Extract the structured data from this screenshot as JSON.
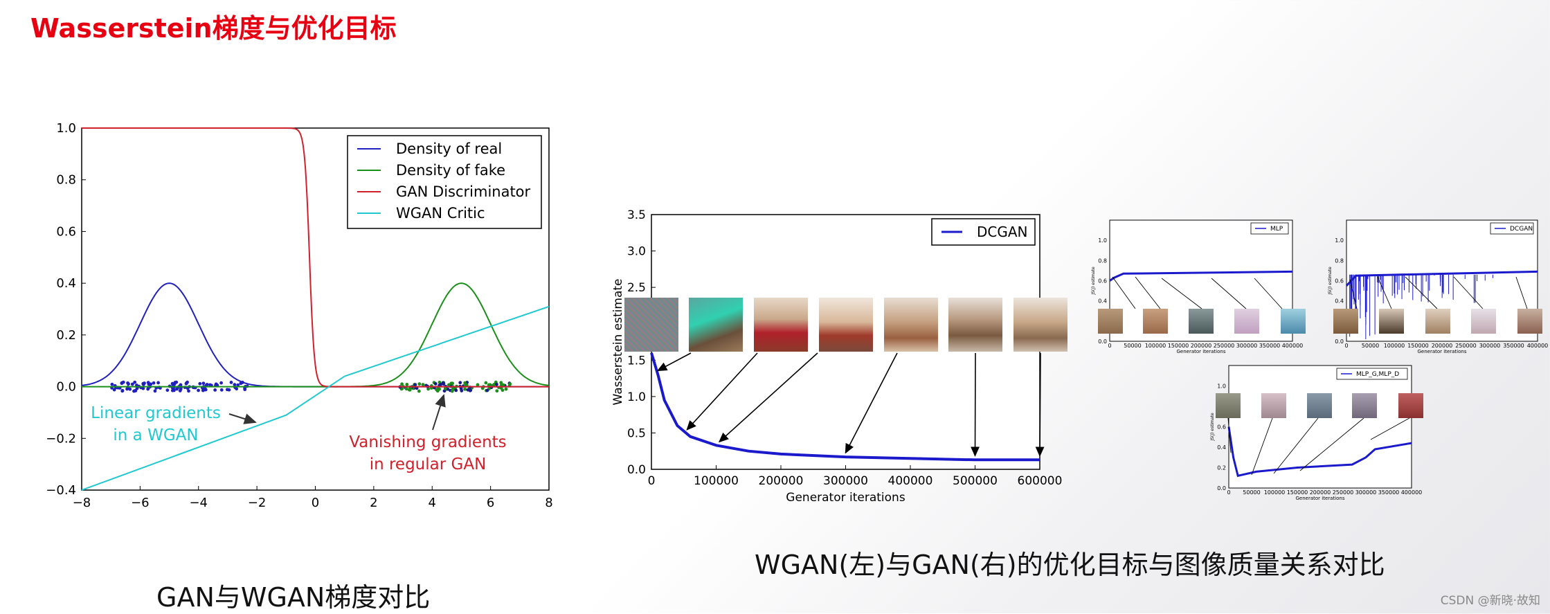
{
  "slide": {
    "title": "Wasserstein梯度与优化目标",
    "caption_left": "GAN与WGAN梯度对比",
    "caption_right": "WGAN(左)与GAN(右)的优化目标与图像质量关系对比",
    "watermark": "CSDN @新晓·故知"
  },
  "colors": {
    "title": "#e60012",
    "real": "#2020c0",
    "fake": "#1a8f1a",
    "disc": "#d0202a",
    "critic": "#20c8d0",
    "wgan_line": "#1a1acc"
  },
  "chart_data": [
    {
      "type": "line",
      "xlim": [
        -8,
        8
      ],
      "ylim": [
        -0.4,
        1.0
      ],
      "xticks": [
        "−8",
        "−6",
        "−4",
        "−2",
        "0",
        "2",
        "4",
        "6",
        "8"
      ],
      "yticks": [
        "−0.4",
        "−0.2",
        "0.0",
        "0.2",
        "0.4",
        "0.6",
        "0.8",
        "1.0"
      ],
      "series": [
        {
          "name": "Density of real",
          "shape": "gaussian",
          "mean": -5,
          "sd": 1,
          "peak": 0.4
        },
        {
          "name": "Density of fake",
          "shape": "gaussian",
          "mean": 5,
          "sd": 1,
          "peak": 0.4
        },
        {
          "name": "GAN Discriminator",
          "shape": "sigmoid",
          "center": -0.2,
          "steepness": 12
        },
        {
          "name": "WGAN Critic",
          "shape": "piecewise",
          "points": [
            [
              -8,
              -0.4
            ],
            [
              -1,
              -0.11
            ],
            [
              1,
              0.04
            ],
            [
              8,
              0.31
            ]
          ]
        }
      ],
      "samples": [
        {
          "color": "blue",
          "x_range": [
            -7,
            -2.2
          ]
        },
        {
          "color": "green",
          "x_range": [
            2.9,
            6.8
          ]
        }
      ],
      "annotations": [
        {
          "text_lines": [
            "Linear gradients",
            "in a WGAN"
          ],
          "color": "cyan"
        },
        {
          "text_lines": [
            "Vanishing gradients",
            "in regular GAN"
          ],
          "color": "red"
        }
      ]
    },
    {
      "type": "line",
      "title": "",
      "xlabel": "Generator iterations",
      "ylabel": "Wasserstein estimate",
      "xlim": [
        0,
        600000
      ],
      "ylim": [
        0,
        3.5
      ],
      "xticks": [
        "0",
        "100000",
        "200000",
        "300000",
        "400000",
        "500000",
        "600000"
      ],
      "yticks": [
        "0.0",
        "0.5",
        "1.0",
        "1.5",
        "2.0",
        "2.5",
        "3.0",
        "3.5"
      ],
      "series": [
        {
          "name": "DCGAN",
          "points": [
            [
              0,
              1.6
            ],
            [
              10000,
              1.3
            ],
            [
              20000,
              0.95
            ],
            [
              40000,
              0.6
            ],
            [
              60000,
              0.45
            ],
            [
              100000,
              0.33
            ],
            [
              150000,
              0.25
            ],
            [
              200000,
              0.21
            ],
            [
              300000,
              0.17
            ],
            [
              400000,
              0.15
            ],
            [
              500000,
              0.13
            ],
            [
              600000,
              0.13
            ]
          ]
        }
      ],
      "arrow_targets_x": [
        10000,
        55000,
        105000,
        300000,
        500000,
        600000
      ]
    },
    {
      "type": "line",
      "xlabel": "Generator iterations",
      "ylabel": "JS(J) estimate",
      "xlim": [
        0,
        400000
      ],
      "ylim": [
        0,
        1.2
      ],
      "xticks": [
        "0",
        "50000",
        "100000",
        "150000",
        "200000",
        "250000",
        "300000",
        "350000",
        "400000"
      ],
      "yticks": [
        "0.0",
        "0.2",
        "0.4",
        "0.6",
        "0.8",
        "1.0"
      ],
      "series": [
        {
          "name": "MLP",
          "points": [
            [
              0,
              0.6
            ],
            [
              10000,
              0.63
            ],
            [
              30000,
              0.67
            ],
            [
              400000,
              0.69
            ]
          ]
        }
      ]
    },
    {
      "type": "line",
      "xlabel": "Generator iterations",
      "ylabel": "JS(J) estimate",
      "xlim": [
        0,
        400000
      ],
      "ylim": [
        0,
        1.2
      ],
      "xticks": [
        "0",
        "50000",
        "100000",
        "150000",
        "200000",
        "250000",
        "300000",
        "350000",
        "400000"
      ],
      "yticks": [
        "0.0",
        "0.2",
        "0.4",
        "0.6",
        "0.8",
        "1.0"
      ],
      "series": [
        {
          "name": "DCGAN",
          "points": [
            [
              0,
              0.55
            ],
            [
              20000,
              0.65
            ],
            [
              400000,
              0.69
            ]
          ]
        }
      ]
    },
    {
      "type": "line",
      "xlabel": "Generator iterations",
      "ylabel": "JS(J) estimate",
      "xlim": [
        0,
        400000
      ],
      "ylim": [
        0,
        1.2
      ],
      "xticks": [
        "0",
        "50000",
        "100000",
        "150000",
        "200000",
        "250000",
        "300000",
        "350000",
        "400000"
      ],
      "yticks": [
        "0.0",
        "0.2",
        "0.4",
        "0.6",
        "0.8",
        "1.0"
      ],
      "series": [
        {
          "name": "MLP_G,MLP_D",
          "points": [
            [
              0,
              0.6
            ],
            [
              10000,
              0.3
            ],
            [
              20000,
              0.12
            ],
            [
              60000,
              0.16
            ],
            [
              150000,
              0.2
            ],
            [
              270000,
              0.23
            ],
            [
              300000,
              0.3
            ],
            [
              320000,
              0.38
            ],
            [
              400000,
              0.44
            ]
          ]
        }
      ]
    }
  ]
}
